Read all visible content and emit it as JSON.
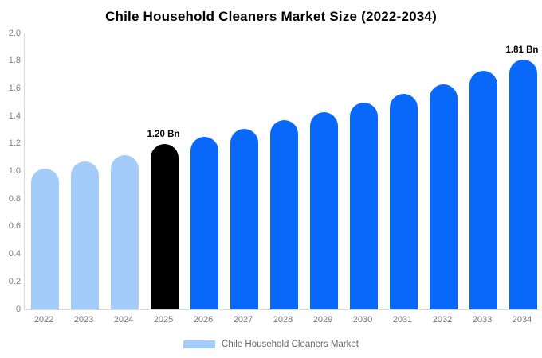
{
  "title": "Chile Household Cleaners Market Size (2022-2034)",
  "legend": {
    "label": "Chile Household Cleaners Market",
    "swatch_color": "#a3ccfb"
  },
  "colors": {
    "historical": "#a3ccfb",
    "highlight": "#000000",
    "forecast": "#0768fa",
    "axis_line": "#d9d9d9",
    "tick_text": "#808080",
    "legend_text": "#666666"
  },
  "chart_data": {
    "type": "bar",
    "title": "Chile Household Cleaners Market Size (2022-2034)",
    "categories": [
      "2022",
      "2023",
      "2024",
      "2025",
      "2026",
      "2027",
      "2028",
      "2029",
      "2030",
      "2031",
      "2032",
      "2033",
      "2034"
    ],
    "values": [
      1.02,
      1.07,
      1.12,
      1.2,
      1.25,
      1.31,
      1.37,
      1.43,
      1.5,
      1.56,
      1.63,
      1.73,
      1.81
    ],
    "bar_segments": [
      "historical",
      "historical",
      "historical",
      "highlight",
      "forecast",
      "forecast",
      "forecast",
      "forecast",
      "forecast",
      "forecast",
      "forecast",
      "forecast",
      "forecast"
    ],
    "annotations": [
      {
        "category": "2025",
        "text": "1.20 Bn"
      },
      {
        "category": "2034",
        "text": "1.81 Bn"
      }
    ],
    "xlabel": "",
    "ylabel": "",
    "ylim": [
      0,
      2.0
    ],
    "yticks": [
      0,
      0.2,
      0.4,
      0.6,
      0.8,
      1.0,
      1.2,
      1.4,
      1.6,
      1.8,
      2.0
    ],
    "ytick_labels": [
      "0",
      "0.2",
      "0.4",
      "0.6",
      "0.8",
      "1.0",
      "1.2",
      "1.4",
      "1.6",
      "1.8",
      "2.0"
    ],
    "grid": false,
    "legend_position": "bottom",
    "unit": "Bn"
  }
}
